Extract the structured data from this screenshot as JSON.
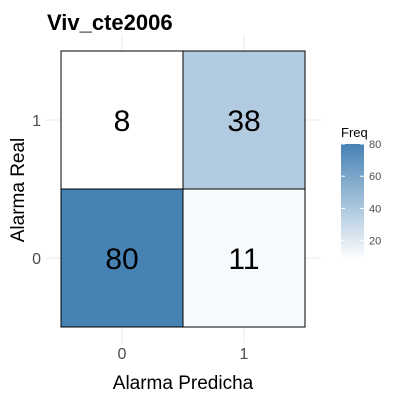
{
  "chart_data": {
    "type": "heatmap",
    "title": "Viv_cte2006",
    "xlabel": "Alarma Predicha",
    "ylabel": "Alarma Real",
    "x_categories": [
      "0",
      "1"
    ],
    "y_categories": [
      "0",
      "1"
    ],
    "cells": [
      {
        "x": "0",
        "y": "1",
        "value": 8
      },
      {
        "x": "1",
        "y": "1",
        "value": 38
      },
      {
        "x": "0",
        "y": "0",
        "value": 80
      },
      {
        "x": "1",
        "y": "0",
        "value": 11
      }
    ],
    "legend": {
      "title": "Freq",
      "ticks": [
        20,
        40,
        60,
        80
      ],
      "range": [
        8,
        80
      ],
      "low_color": "#ffffff",
      "high_color": "#4682b4"
    },
    "grid": true
  }
}
